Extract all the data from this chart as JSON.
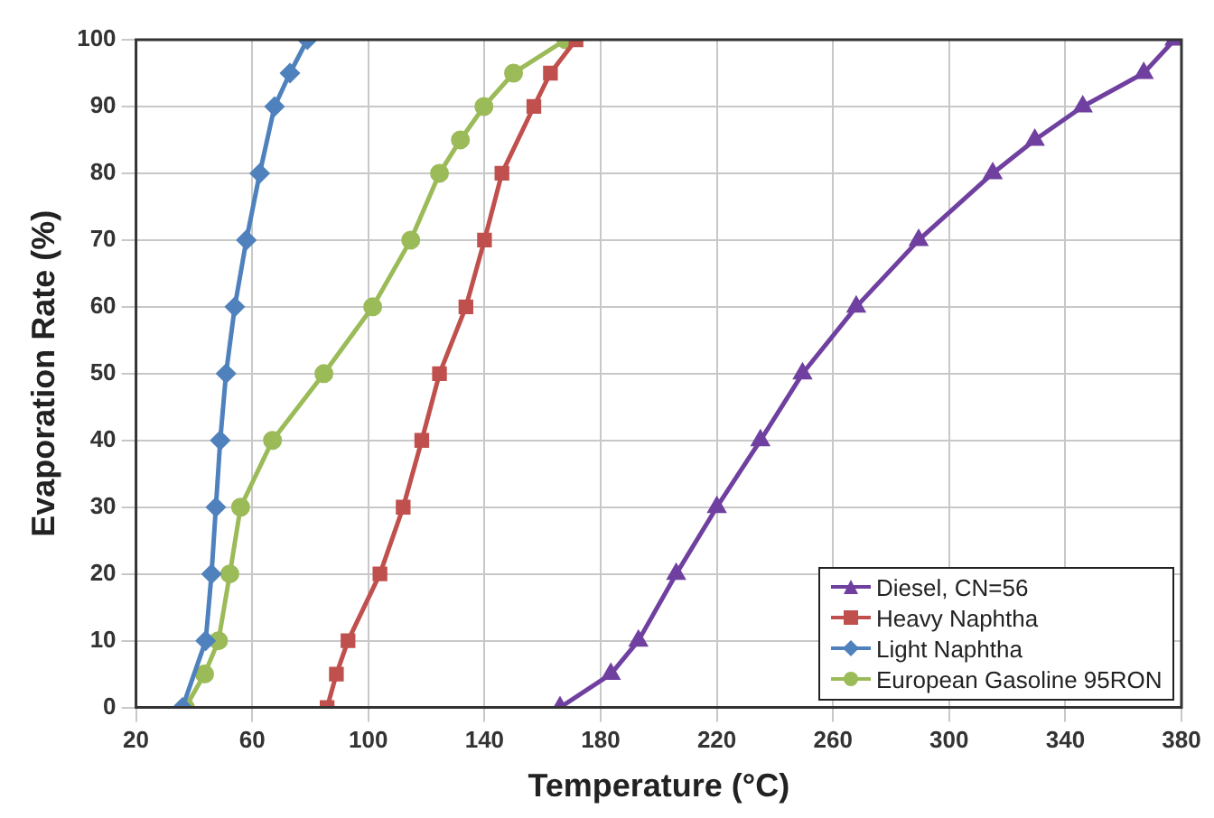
{
  "chart_data": {
    "type": "line",
    "xlabel": "Temperature (°C)",
    "ylabel": "Evaporation Rate (%)",
    "xlim": [
      20,
      380
    ],
    "xticks": [
      20,
      60,
      100,
      140,
      180,
      220,
      260,
      300,
      340,
      380
    ],
    "ylim": [
      0,
      100
    ],
    "yticks": [
      0,
      10,
      20,
      30,
      40,
      50,
      60,
      70,
      80,
      90,
      100
    ],
    "grid": true,
    "legend": "bottom right",
    "series": [
      {
        "name": "Diesel, CN=56",
        "color": "#7040a0",
        "marker": "triangle",
        "x": [
          166,
          183.5,
          193,
          206,
          220,
          235,
          249.5,
          268,
          289.5,
          315,
          329.5,
          346,
          367,
          377.6
        ],
        "values": [
          0,
          5,
          10,
          20,
          30,
          40,
          50,
          60,
          70,
          80,
          85,
          90,
          95,
          100
        ]
      },
      {
        "name": "Heavy Naphtha",
        "color": "#c0504d",
        "marker": "square",
        "x": [
          85.8,
          89,
          93,
          104,
          112,
          118.4,
          124.5,
          133.6,
          140,
          146,
          157,
          162.7,
          171.5
        ],
        "values": [
          0,
          5,
          10,
          20,
          30,
          40,
          50,
          60,
          70,
          80,
          90,
          95,
          100
        ]
      },
      {
        "name": "Light Naphtha",
        "color": "#4f81bd",
        "marker": "diamond",
        "x": [
          36,
          44,
          46,
          47.5,
          49,
          51,
          54,
          58,
          62.6,
          67.7,
          73,
          79
        ],
        "values": [
          0,
          10,
          20,
          30,
          40,
          50,
          60,
          70,
          80,
          90,
          95,
          100
        ]
      },
      {
        "name": "European Gasoline 95RON",
        "color": "#9bbb59",
        "marker": "circle",
        "x": [
          37,
          43.6,
          48.4,
          52.3,
          56,
          67,
          84.7,
          101.5,
          114.6,
          124.5,
          131.7,
          139.8,
          150,
          168
        ],
        "values": [
          0,
          5,
          10,
          20,
          30,
          40,
          50,
          60,
          70,
          80,
          85,
          90,
          95,
          100
        ]
      }
    ]
  }
}
